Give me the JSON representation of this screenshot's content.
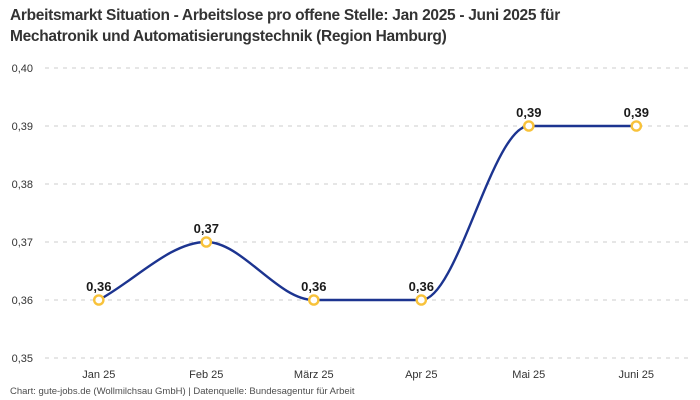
{
  "header": {
    "title_line1": "Arbeitsmarkt Situation - Arbeitslose pro offene Stelle: Jan 2025 - Juni 2025 für",
    "title_line2": "Mechatronik und Automatisierungstechnik (Region Hamburg)"
  },
  "footer": {
    "credit": "Chart: gute-jobs.de (Wollmilchsau GmbH) | Datenquelle: Bundesagentur für Arbeit"
  },
  "chart_data": {
    "type": "line",
    "title": "Arbeitsmarkt Situation - Arbeitslose pro offene Stelle: Jan 2025 - Juni 2025 für Mechatronik und Automatisierungstechnik (Region Hamburg)",
    "categories": [
      "Jan 25",
      "Feb 25",
      "März 25",
      "Apr 25",
      "Mai 25",
      "Juni 25"
    ],
    "values": [
      0.36,
      0.37,
      0.36,
      0.36,
      0.39,
      0.39
    ],
    "value_labels": [
      "0,36",
      "0,37",
      "0,36",
      "0,36",
      "0,39",
      "0,39"
    ],
    "xlabel": "",
    "ylabel": "",
    "ylim": [
      0.35,
      0.4
    ],
    "y_ticks": [
      0.4,
      0.39,
      0.38,
      0.37,
      0.36,
      0.35
    ],
    "y_tick_labels": [
      "0,40",
      "0,39",
      "0,38",
      "0,37",
      "0,36",
      "0,35"
    ],
    "grid": "horizontal-dashed",
    "legend": "none",
    "curve": "monotone",
    "marker": "open-circle",
    "colors": {
      "line": "#1C3490",
      "marker_ring": "#F8C23A",
      "marker_fill": "#FFFFFF",
      "grid": "#CCCCCC",
      "tick_label": "#333333",
      "data_label": "#1A1A1A",
      "title": "#333333",
      "footer": "#4D4D4D",
      "background": "#FFFFFF"
    }
  }
}
